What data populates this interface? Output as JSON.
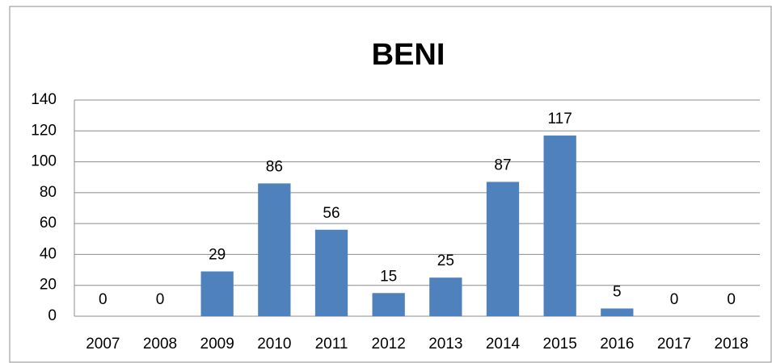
{
  "chart_data": {
    "type": "bar",
    "title": "BENI",
    "categories": [
      "2007",
      "2008",
      "2009",
      "2010",
      "2011",
      "2012",
      "2013",
      "2014",
      "2015",
      "2016",
      "2017",
      "2018"
    ],
    "values": [
      0,
      0,
      29,
      86,
      56,
      15,
      25,
      87,
      117,
      5,
      0,
      0
    ],
    "color": "#4f81bd",
    "ylim": [
      0,
      140
    ],
    "yticks": [
      0,
      20,
      40,
      60,
      80,
      100,
      120,
      140
    ],
    "grid": true
  }
}
